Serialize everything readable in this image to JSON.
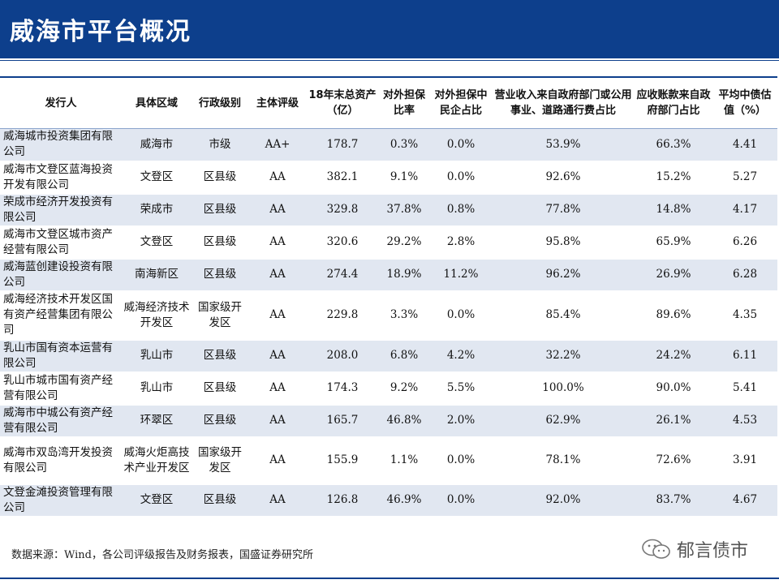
{
  "title": "威海市平台概况",
  "headers": {
    "issuer": "发行人",
    "region": "具体区域",
    "level": "行政级别",
    "rating": "主体评级",
    "assets": "18年末总资产（亿）",
    "guarantee_ratio": "对外担保比率",
    "private_guarantee": "对外担保中民企占比",
    "revenue_gov": "营业收入来自政府部门或公用事业、道路通行费占比",
    "receivable_gov": "应收账款来自政府部门占比",
    "valuation": "平均中债估值（%）"
  },
  "rows": [
    {
      "issuer": "威海城市投资集团有限公司",
      "region": "威海市",
      "level": "市级",
      "rating": "AA+",
      "assets": "178.7",
      "guarantee_ratio": "0.3%",
      "private_guarantee": "0.0%",
      "revenue_gov": "53.9%",
      "receivable_gov": "66.3%",
      "valuation": "4.41"
    },
    {
      "issuer": "威海市文登区蓝海投资开发有限公司",
      "region": "文登区",
      "level": "区县级",
      "rating": "AA",
      "assets": "382.1",
      "guarantee_ratio": "9.1%",
      "private_guarantee": "0.0%",
      "revenue_gov": "92.6%",
      "receivable_gov": "15.2%",
      "valuation": "5.27"
    },
    {
      "issuer": "荣成市经济开发投资有限公司",
      "region": "荣成市",
      "level": "区县级",
      "rating": "AA",
      "assets": "329.8",
      "guarantee_ratio": "37.8%",
      "private_guarantee": "0.8%",
      "revenue_gov": "77.8%",
      "receivable_gov": "14.8%",
      "valuation": "4.17"
    },
    {
      "issuer": "威海市文登区城市资产经营有限公司",
      "region": "文登区",
      "level": "区县级",
      "rating": "AA",
      "assets": "320.6",
      "guarantee_ratio": "29.2%",
      "private_guarantee": "2.8%",
      "revenue_gov": "95.8%",
      "receivable_gov": "65.9%",
      "valuation": "6.26"
    },
    {
      "issuer": "威海蓝创建设投资有限公司",
      "region": "南海新区",
      "level": "区县级",
      "rating": "AA",
      "assets": "274.4",
      "guarantee_ratio": "18.9%",
      "private_guarantee": "11.2%",
      "revenue_gov": "96.2%",
      "receivable_gov": "26.9%",
      "valuation": "6.28"
    },
    {
      "issuer": "威海经济技术开发区国有资产经营集团有限公司",
      "region": "威海经济技术开发区",
      "level": "国家级开发区",
      "rating": "AA",
      "assets": "229.8",
      "guarantee_ratio": "3.3%",
      "private_guarantee": "0.0%",
      "revenue_gov": "85.4%",
      "receivable_gov": "89.6%",
      "valuation": "4.35"
    },
    {
      "issuer": "乳山市国有资本运营有限公司",
      "region": "乳山市",
      "level": "区县级",
      "rating": "AA",
      "assets": "208.0",
      "guarantee_ratio": "6.8%",
      "private_guarantee": "4.2%",
      "revenue_gov": "32.2%",
      "receivable_gov": "24.2%",
      "valuation": "6.11"
    },
    {
      "issuer": "乳山市城市国有资产经营有限公司",
      "region": "乳山市",
      "level": "区县级",
      "rating": "AA",
      "assets": "174.3",
      "guarantee_ratio": "9.2%",
      "private_guarantee": "5.5%",
      "revenue_gov": "100.0%",
      "receivable_gov": "90.0%",
      "valuation": "5.41"
    },
    {
      "issuer": "威海市中城公有资产经营有限公司",
      "region": "环翠区",
      "level": "区县级",
      "rating": "AA",
      "assets": "165.7",
      "guarantee_ratio": "46.8%",
      "private_guarantee": "2.0%",
      "revenue_gov": "62.9%",
      "receivable_gov": "26.1%",
      "valuation": "4.53"
    },
    {
      "issuer": "威海市双岛湾开发投资有限公司",
      "region": "威海火炬高技术产业开发区",
      "level": "国家级开发区",
      "rating": "AA",
      "assets": "155.9",
      "guarantee_ratio": "1.1%",
      "private_guarantee": "0.0%",
      "revenue_gov": "78.1%",
      "receivable_gov": "72.6%",
      "valuation": "3.91"
    },
    {
      "issuer": "文登金滩投资管理有限公司",
      "region": "文登区",
      "level": "区县级",
      "rating": "AA",
      "assets": "126.8",
      "guarantee_ratio": "46.9%",
      "private_guarantee": "0.0%",
      "revenue_gov": "92.0%",
      "receivable_gov": "83.7%",
      "valuation": "4.67"
    }
  ],
  "source": "数据来源：Wind，各公司评级报告及财务报表，国盛证券研究所",
  "watermark": {
    "text": "郁言债市",
    "icon": "wechat-icon"
  },
  "colors": {
    "brand": "#0d3f8c",
    "row_stripe": "#e1e7f1"
  }
}
